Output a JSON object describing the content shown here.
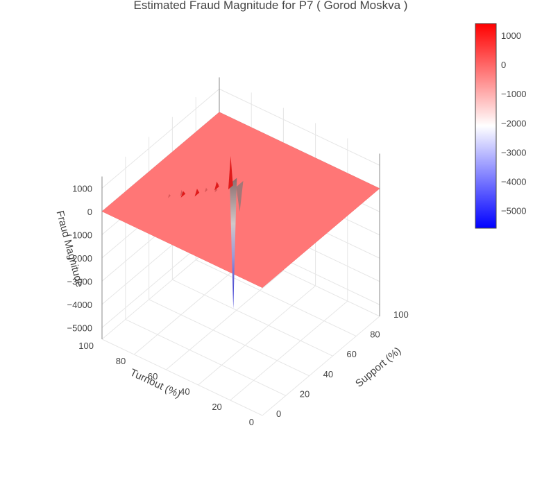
{
  "chart_data": {
    "type": "surface",
    "title": "Estimated Fraud Magnitude for P7 ( Gorod Moskva )",
    "x_axis": {
      "label": "Support (%)",
      "ticks": [
        0,
        20,
        40,
        60,
        80,
        100
      ],
      "range": [
        0,
        100
      ]
    },
    "y_axis": {
      "label": "Turnout (%)",
      "ticks": [
        0,
        20,
        40,
        60,
        80,
        100
      ],
      "range": [
        0,
        100
      ]
    },
    "z_axis": {
      "label": "Fraud Magnitude",
      "ticks": [
        1000,
        0,
        -1000,
        -2000,
        -3000,
        -4000,
        -5000
      ],
      "range": [
        -5500,
        1500
      ]
    },
    "colorscale": {
      "colors": [
        "#0000ff",
        "#ffffff",
        "#ff0000"
      ],
      "range": [
        -5600,
        1400
      ],
      "ticks": [
        1000,
        0,
        -1000,
        -2000,
        -3000,
        -4000,
        -5000
      ]
    },
    "baseline_z": 0,
    "features": [
      {
        "support": 55,
        "turnout": 60,
        "z": 1350,
        "kind": "peak"
      },
      {
        "support": 60,
        "turnout": 62,
        "z": -5500,
        "kind": "trough"
      },
      {
        "support": 60,
        "turnout": 58,
        "z": -1200,
        "kind": "trough"
      },
      {
        "support": 50,
        "turnout": 65,
        "z": 300,
        "kind": "peak"
      },
      {
        "support": 40,
        "turnout": 70,
        "z": 250,
        "kind": "peak"
      },
      {
        "support": 35,
        "turnout": 75,
        "z": 200,
        "kind": "peak"
      }
    ],
    "grid": true,
    "colorbar_position": "right"
  }
}
